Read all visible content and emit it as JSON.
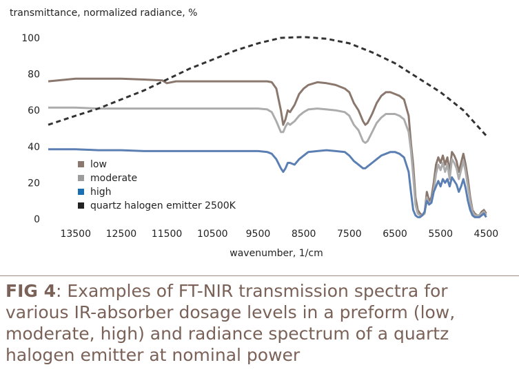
{
  "chart_data": {
    "type": "line",
    "ylabel": "transmittance, normalized radiance, %",
    "xlabel": "wavenumber, 1/cm",
    "xlim": [
      14100,
      4400
    ],
    "ylim": [
      0,
      100
    ],
    "x_reversed": true,
    "x_ticks": [
      13500,
      12500,
      11500,
      10500,
      9500,
      8500,
      7500,
      6500,
      5500,
      4500
    ],
    "y_ticks": [
      0,
      20,
      40,
      60,
      80,
      100
    ],
    "legend": "bottom-left, inside plot",
    "grid": false,
    "series": [
      {
        "name": "low",
        "color": "#8a776d",
        "style": "solid",
        "x": [
          14100,
          13500,
          13000,
          12500,
          12000,
          11600,
          11500,
          11300,
          11000,
          10500,
          10000,
          9500,
          9300,
          9200,
          9100,
          9000,
          8950,
          8900,
          8850,
          8800,
          8700,
          8600,
          8500,
          8400,
          8200,
          8000,
          7800,
          7600,
          7500,
          7400,
          7300,
          7200,
          7150,
          7100,
          7000,
          6900,
          6800,
          6700,
          6600,
          6500,
          6400,
          6300,
          6200,
          6150,
          6100,
          6050,
          6000,
          5950,
          5900,
          5850,
          5800,
          5750,
          5700,
          5650,
          5600,
          5550,
          5500,
          5450,
          5400,
          5350,
          5300,
          5250,
          5200,
          5150,
          5100,
          5050,
          5000,
          4950,
          4900,
          4850,
          4800,
          4750,
          4700,
          4650,
          4600,
          4550,
          4500
        ],
        "y": [
          76,
          77.5,
          77.5,
          77.5,
          77,
          76.5,
          75,
          76,
          76,
          76,
          76,
          76,
          76,
          75.5,
          72,
          60,
          52,
          55,
          60,
          59,
          63,
          69,
          72,
          74,
          75.5,
          75,
          74,
          72,
          70,
          64,
          60,
          54,
          52,
          53,
          58,
          64,
          68,
          70,
          70,
          69,
          68,
          66,
          57,
          42,
          30,
          12,
          5,
          3,
          2,
          3,
          15,
          10,
          12,
          20,
          30,
          34,
          31,
          35,
          30,
          34,
          26,
          37,
          35,
          32,
          26,
          31,
          36,
          30,
          22,
          12,
          5,
          3,
          2,
          2,
          4,
          5,
          3
        ]
      },
      {
        "name": "moderate",
        "color": "#acacac",
        "style": "solid",
        "x": [
          14100,
          13500,
          13000,
          12500,
          12000,
          11500,
          11000,
          10500,
          10000,
          9500,
          9300,
          9200,
          9100,
          9000,
          8950,
          8900,
          8850,
          8800,
          8700,
          8600,
          8500,
          8400,
          8200,
          8000,
          7800,
          7600,
          7500,
          7400,
          7300,
          7200,
          7150,
          7100,
          7000,
          6900,
          6800,
          6700,
          6600,
          6500,
          6400,
          6300,
          6200,
          6150,
          6100,
          6050,
          6000,
          5950,
          5900,
          5850,
          5800,
          5750,
          5700,
          5650,
          5600,
          5550,
          5500,
          5450,
          5400,
          5350,
          5300,
          5250,
          5200,
          5150,
          5100,
          5050,
          5000,
          4950,
          4900,
          4850,
          4800,
          4750,
          4700,
          4650,
          4600,
          4550,
          4500
        ],
        "y": [
          61.5,
          61.5,
          61,
          61,
          61,
          61,
          61,
          61,
          61,
          61,
          60.5,
          59,
          54,
          48,
          48,
          51,
          53,
          52,
          54,
          57,
          59,
          60.5,
          61,
          60.5,
          60,
          59,
          57,
          52,
          49,
          43,
          42,
          43,
          48,
          53,
          56,
          58,
          58,
          58,
          57,
          55,
          48,
          38,
          24,
          8,
          3,
          2,
          2,
          3,
          12,
          8,
          10,
          16,
          25,
          30,
          27,
          31,
          26,
          30,
          22,
          33,
          31,
          28,
          22,
          27,
          32,
          26,
          18,
          10,
          4,
          2,
          2,
          2,
          3,
          4,
          2
        ]
      },
      {
        "name": "high",
        "color": "#5b7fb2",
        "style": "solid",
        "x": [
          14100,
          13500,
          13000,
          12500,
          12000,
          11500,
          11000,
          10500,
          10000,
          9500,
          9300,
          9200,
          9100,
          9000,
          8950,
          8900,
          8850,
          8800,
          8700,
          8600,
          8500,
          8400,
          8200,
          8000,
          7800,
          7600,
          7500,
          7400,
          7300,
          7200,
          7150,
          7100,
          7000,
          6900,
          6800,
          6700,
          6600,
          6500,
          6400,
          6300,
          6200,
          6150,
          6100,
          6050,
          6000,
          5950,
          5900,
          5850,
          5800,
          5750,
          5700,
          5650,
          5600,
          5550,
          5500,
          5450,
          5400,
          5350,
          5300,
          5250,
          5200,
          5150,
          5100,
          5050,
          5000,
          4950,
          4900,
          4850,
          4800,
          4750,
          4700,
          4650,
          4600,
          4550,
          4500
        ],
        "y": [
          38.5,
          38.5,
          38,
          38,
          37.5,
          37.5,
          37.5,
          37.5,
          37.5,
          37.5,
          37,
          36,
          33,
          28,
          26,
          28,
          31,
          31,
          30,
          33,
          35,
          37,
          37.5,
          38,
          37.5,
          37,
          35,
          32,
          30,
          28,
          28,
          29,
          31,
          33,
          35,
          36,
          37,
          37,
          36,
          34,
          26,
          15,
          5,
          2,
          1,
          1,
          2,
          4,
          10,
          8,
          9,
          15,
          18,
          21,
          18,
          22,
          20,
          22,
          18,
          23,
          21,
          19,
          15,
          18,
          22,
          17,
          10,
          5,
          2,
          1,
          1,
          1,
          2,
          3,
          1
        ]
      },
      {
        "name": "quartz halogen emitter 2500K",
        "color": "#333333",
        "style": "dashed",
        "x": [
          14100,
          13500,
          13000,
          12500,
          12000,
          11500,
          11000,
          10500,
          10000,
          9500,
          9000,
          8500,
          8000,
          7500,
          7000,
          6500,
          6000,
          5500,
          5000,
          4500
        ],
        "y": [
          52,
          57,
          61,
          66,
          71,
          77,
          83,
          88,
          93,
          97,
          100,
          100.5,
          99.5,
          97,
          92,
          86,
          78,
          70,
          60,
          46
        ]
      }
    ]
  },
  "caption": {
    "label": "FIG 4",
    "text": ": Examples of FT-NIR transmission spectra for various IR-absorber dosage levels in a preform (low, moderate, high) and radiance spectrum of a quartz halogen emitter at nominal power"
  }
}
